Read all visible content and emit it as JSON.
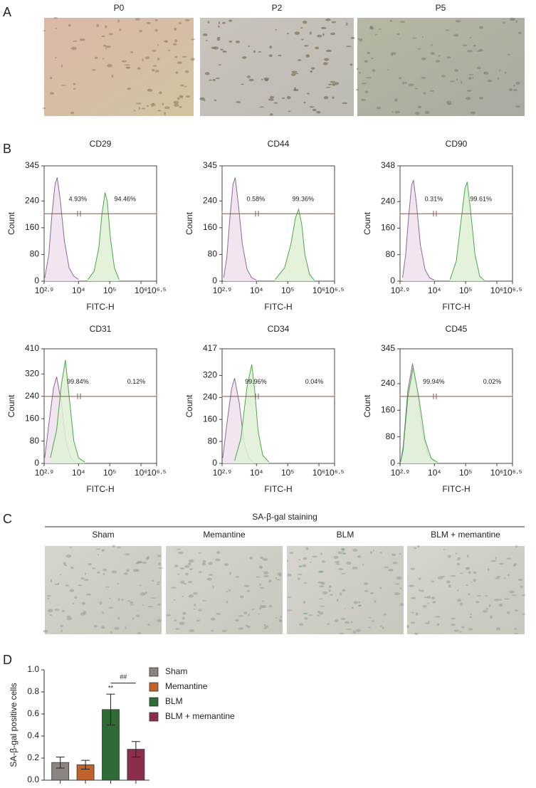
{
  "panel_a": {
    "letter": "A",
    "titles": [
      "P0",
      "P2",
      "P5"
    ]
  },
  "panel_b": {
    "letter": "B"
  },
  "panel_c": {
    "letter": "C",
    "title": "SA-β-gal staining",
    "titles": [
      "Sham",
      "Memantine",
      "BLM",
      "BLM + memantine"
    ]
  },
  "panel_d": {
    "letter": "D"
  },
  "chart_data": [
    {
      "type": "area",
      "title": "CD29",
      "xlabel": "FITC-H",
      "ylabel": "Count",
      "annotations": [
        "4.93%",
        "94.46%"
      ],
      "xlim": [
        2.9,
        6.5
      ],
      "xticks": [
        {
          "value": 2.9,
          "label": "10²·⁹"
        },
        {
          "value": 4,
          "label": "10⁴"
        },
        {
          "value": 5,
          "label": "10⁵"
        },
        {
          "value": 6,
          "label": "10⁶"
        },
        {
          "value": 6.5,
          "label": "10⁶·⁵"
        }
      ],
      "ylim": [
        0,
        345
      ],
      "yticks": [
        0,
        80,
        160,
        240,
        345
      ],
      "series": [
        {
          "color": "#8a6a9a",
          "x": [
            2.92,
            3.05,
            3.15,
            3.25,
            3.32,
            3.42,
            3.55,
            3.7,
            3.85,
            4.0
          ],
          "values": [
            10,
            80,
            200,
            290,
            310,
            240,
            120,
            40,
            15,
            5
          ]
        },
        {
          "color": "#4aa84a",
          "x": [
            4.3,
            4.5,
            4.65,
            4.75,
            4.85,
            4.92,
            5.02,
            5.15,
            5.3
          ],
          "values": [
            5,
            30,
            100,
            200,
            265,
            240,
            130,
            40,
            5
          ]
        }
      ]
    },
    {
      "type": "area",
      "title": "CD44",
      "xlabel": "FITC-H",
      "ylabel": "Count",
      "annotations": [
        "0.58%",
        "99.36%"
      ],
      "xlim": [
        2.9,
        6.5
      ],
      "xticks": [
        {
          "value": 2.9,
          "label": "10²·⁹"
        },
        {
          "value": 4,
          "label": "10⁴"
        },
        {
          "value": 5,
          "label": "10⁵"
        },
        {
          "value": 6,
          "label": "10⁶"
        },
        {
          "value": 6.5,
          "label": "10⁶·⁵"
        }
      ],
      "ylim": [
        0,
        345
      ],
      "yticks": [
        0,
        80,
        160,
        240,
        345
      ],
      "series": [
        {
          "color": "#8a6a9a",
          "x": [
            2.95,
            3.05,
            3.15,
            3.25,
            3.32,
            3.42,
            3.55,
            3.7,
            3.85,
            4.0
          ],
          "values": [
            10,
            70,
            190,
            290,
            310,
            230,
            110,
            35,
            10,
            3
          ]
        },
        {
          "color": "#4aa84a",
          "x": [
            4.6,
            4.9,
            5.1,
            5.25,
            5.35,
            5.45,
            5.55,
            5.7,
            5.85
          ],
          "values": [
            5,
            40,
            110,
            190,
            215,
            170,
            80,
            20,
            3
          ]
        }
      ]
    },
    {
      "type": "area",
      "title": "CD90",
      "xlabel": "FITC-H",
      "ylabel": "Count",
      "annotations": [
        "0.31%",
        "99.61%"
      ],
      "xlim": [
        2.9,
        6.5
      ],
      "xticks": [
        {
          "value": 2.9,
          "label": "10²·⁹"
        },
        {
          "value": 4,
          "label": "10⁴"
        },
        {
          "value": 5,
          "label": "10⁵"
        },
        {
          "value": 6,
          "label": "10⁶"
        },
        {
          "value": 6.5,
          "label": "10⁶·⁵"
        }
      ],
      "ylim": [
        0,
        348
      ],
      "yticks": [
        0,
        80,
        160,
        240,
        348
      ],
      "series": [
        {
          "color": "#8a6a9a",
          "x": [
            2.98,
            3.08,
            3.18,
            3.27,
            3.33,
            3.43,
            3.55,
            3.7,
            3.85,
            4.0
          ],
          "values": [
            10,
            80,
            200,
            290,
            305,
            230,
            110,
            35,
            10,
            3
          ]
        },
        {
          "color": "#4aa84a",
          "x": [
            4.5,
            4.7,
            4.85,
            4.98,
            5.05,
            5.15,
            5.3,
            5.45,
            5.6
          ],
          "values": [
            5,
            60,
            180,
            280,
            300,
            220,
            80,
            15,
            2
          ]
        }
      ]
    },
    {
      "type": "area",
      "title": "CD31",
      "xlabel": "FITC-H",
      "ylabel": "Count",
      "annotations": [
        "99.84%",
        "0.12%"
      ],
      "xlim": [
        2.9,
        6.5
      ],
      "xticks": [
        {
          "value": 2.9,
          "label": "10²·⁹"
        },
        {
          "value": 4,
          "label": "10⁴"
        },
        {
          "value": 5,
          "label": "10⁵"
        },
        {
          "value": 6,
          "label": "10⁶"
        },
        {
          "value": 6.5,
          "label": "10⁶·⁵"
        }
      ],
      "ylim": [
        0,
        410
      ],
      "yticks": [
        0,
        80,
        160,
        240,
        320,
        410
      ],
      "series": [
        {
          "color": "#8a6a9a",
          "x": [
            2.92,
            3.05,
            3.2,
            3.3,
            3.45,
            3.6,
            3.75,
            3.9
          ],
          "values": [
            20,
            140,
            270,
            310,
            220,
            80,
            20,
            5
          ]
        },
        {
          "color": "#4aa84a",
          "x": [
            3.1,
            3.3,
            3.45,
            3.58,
            3.7,
            3.85,
            4.0,
            4.2
          ],
          "values": [
            20,
            120,
            280,
            370,
            240,
            80,
            20,
            5
          ]
        }
      ]
    },
    {
      "type": "area",
      "title": "CD34",
      "xlabel": "FITC-H",
      "ylabel": "Count",
      "annotations": [
        "99.96%",
        "0.04%"
      ],
      "xlim": [
        2.9,
        6.5
      ],
      "xticks": [
        {
          "value": 2.9,
          "label": "10²·⁹"
        },
        {
          "value": 4,
          "label": "10⁴"
        },
        {
          "value": 5,
          "label": "10⁵"
        },
        {
          "value": 6,
          "label": "10⁶"
        },
        {
          "value": 6.5,
          "label": "10⁶·⁵"
        }
      ],
      "ylim": [
        0,
        417
      ],
      "yticks": [
        0,
        80,
        160,
        240,
        320,
        417
      ],
      "series": [
        {
          "color": "#8a6a9a",
          "x": [
            2.92,
            3.05,
            3.2,
            3.3,
            3.45,
            3.6,
            3.75,
            3.9
          ],
          "values": [
            20,
            140,
            270,
            310,
            220,
            80,
            20,
            5
          ]
        },
        {
          "color": "#4aa84a",
          "x": [
            3.3,
            3.5,
            3.7,
            3.85,
            3.95,
            4.05,
            4.2,
            4.4
          ],
          "values": [
            10,
            90,
            280,
            360,
            260,
            120,
            30,
            5
          ]
        }
      ]
    },
    {
      "type": "area",
      "title": "CD45",
      "xlabel": "FITC-H",
      "ylabel": "Count",
      "annotations": [
        "99.94%",
        "0.02%"
      ],
      "xlim": [
        2.9,
        6.5
      ],
      "xticks": [
        {
          "value": 2.9,
          "label": "10²·⁹"
        },
        {
          "value": 4,
          "label": "10⁴"
        },
        {
          "value": 5,
          "label": "10⁵"
        },
        {
          "value": 6,
          "label": "10⁶"
        },
        {
          "value": 6.5,
          "label": "10⁶·⁵"
        }
      ],
      "ylim": [
        0,
        345
      ],
      "yticks": [
        0,
        80,
        160,
        240,
        345
      ],
      "series": [
        {
          "color": "#8a6a9a",
          "x": [
            2.92,
            3.0,
            3.15,
            3.3,
            3.45,
            3.6,
            3.8,
            4.0
          ],
          "values": [
            5,
            50,
            220,
            300,
            220,
            100,
            25,
            5
          ]
        },
        {
          "color": "#4aa84a",
          "x": [
            2.92,
            3.0,
            3.15,
            3.32,
            3.5,
            3.7,
            3.9,
            4.1
          ],
          "values": [
            5,
            40,
            200,
            290,
            200,
            70,
            15,
            3
          ]
        }
      ]
    },
    {
      "type": "bar",
      "ylabel": "SA-β-gal positive cells",
      "annotations": [
        "**",
        "##"
      ],
      "categories": [
        "Sham",
        "Memantine",
        "BLM",
        "BLM + memantine"
      ],
      "values": [
        0.16,
        0.14,
        0.64,
        0.28
      ],
      "errors": [
        0.05,
        0.04,
        0.14,
        0.07
      ],
      "colors": [
        "#8c8480",
        "#c0622a",
        "#2f6b35",
        "#8b2e4a"
      ],
      "ylim": [
        0,
        1
      ],
      "yticks": [
        {
          "value": 0,
          "label": "0.0"
        },
        {
          "value": 0.2,
          "label": "0.2"
        },
        {
          "value": 0.4,
          "label": "0.4"
        },
        {
          "value": 0.6,
          "label": "0.6"
        },
        {
          "value": 0.8,
          "label": "0.8"
        },
        {
          "value": 1,
          "label": "1.0"
        }
      ]
    }
  ]
}
